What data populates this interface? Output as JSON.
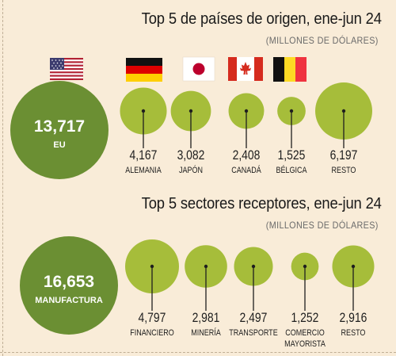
{
  "chart_data": [
    {
      "type": "bubble",
      "title": "Top 5 de países de origen, ene-jun 24",
      "subtitle": "(MILLONES DE DÓLARES)",
      "featured": {
        "value_label": "13,717",
        "value": 13717,
        "category": "EU",
        "flag": "usa-flag"
      },
      "categories": [
        "ALEMANIA",
        "JAPÓN",
        "CANADÁ",
        "BÉLGICA",
        "RESTO"
      ],
      "values": [
        4167,
        3082,
        2408,
        1525,
        6197
      ],
      "value_labels": [
        "4,167",
        "3,082",
        "2,408",
        "1,525",
        "6,197"
      ],
      "flags": [
        "germany-flag",
        "japan-flag",
        "canada-flag",
        "belgium-flag"
      ]
    },
    {
      "type": "bubble",
      "title": "Top 5 sectores receptores, ene-jun 24",
      "subtitle": "(MILLONES DE DÓLARES)",
      "featured": {
        "value_label": "16,653",
        "value": 16653,
        "category": "MANUFACTURA"
      },
      "categories": [
        "FINANCIERO",
        "MINERÍA",
        "TRANSPORTE",
        [
          "COMERCIO",
          "MAYORISTA"
        ],
        "RESTO"
      ],
      "values": [
        4797,
        2981,
        2497,
        1252,
        2916
      ],
      "value_labels": [
        "4,797",
        "2,981",
        "2,497",
        "1,252",
        "2,916"
      ]
    }
  ],
  "colors": {
    "background": "#f9ecd8",
    "featured_circle": "#6b8f33",
    "small_circle": "#a6bd3a",
    "connector": "#1e1e1e"
  }
}
